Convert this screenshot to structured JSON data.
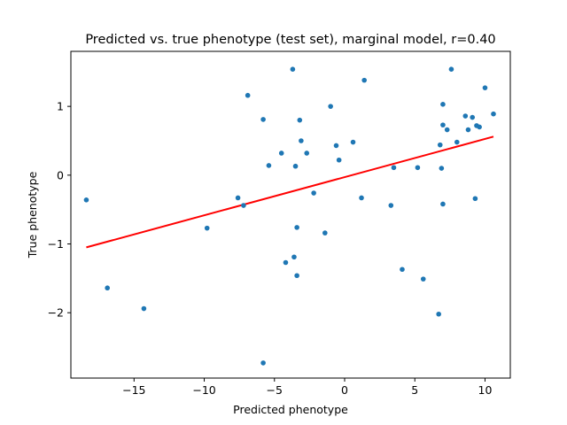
{
  "chart_data": {
    "type": "scatter",
    "title": "Predicted vs. true phenotype (test set), marginal model, r=0.40",
    "xlabel": "Predicted phenotype",
    "ylabel": "True phenotype",
    "xlim": [
      -19.5,
      11.8
    ],
    "ylim": [
      -2.95,
      1.8
    ],
    "xticks": [
      -15,
      -10,
      -5,
      0,
      5,
      10
    ],
    "yticks": [
      -2,
      -1,
      0,
      1
    ],
    "xtick_labels": [
      "−15",
      "−10",
      "−5",
      "0",
      "5",
      "10"
    ],
    "ytick_labels": [
      "−2",
      "−1",
      "0",
      "1"
    ],
    "grid": false,
    "point_color": "#1f77b4",
    "line_color": "#ff0000",
    "points": [
      {
        "x": -18.4,
        "y": -0.36
      },
      {
        "x": -16.9,
        "y": -1.64
      },
      {
        "x": -14.3,
        "y": -1.94
      },
      {
        "x": -9.8,
        "y": -0.77
      },
      {
        "x": -7.6,
        "y": -0.33
      },
      {
        "x": -7.2,
        "y": -0.44
      },
      {
        "x": -6.9,
        "y": 1.16
      },
      {
        "x": -5.8,
        "y": 0.81
      },
      {
        "x": -5.8,
        "y": -2.73
      },
      {
        "x": -5.4,
        "y": 0.14
      },
      {
        "x": -4.5,
        "y": 0.32
      },
      {
        "x": -4.2,
        "y": -1.27
      },
      {
        "x": -3.7,
        "y": 1.54
      },
      {
        "x": -3.6,
        "y": -1.19
      },
      {
        "x": -3.5,
        "y": 0.13
      },
      {
        "x": -3.4,
        "y": -0.76
      },
      {
        "x": -3.4,
        "y": -1.46
      },
      {
        "x": -3.2,
        "y": 0.8
      },
      {
        "x": -3.1,
        "y": 0.5
      },
      {
        "x": -2.7,
        "y": 0.32
      },
      {
        "x": -2.2,
        "y": -0.26
      },
      {
        "x": -1.4,
        "y": -0.84
      },
      {
        "x": -1.0,
        "y": 1.0
      },
      {
        "x": -0.6,
        "y": 0.43
      },
      {
        "x": -0.4,
        "y": 0.22
      },
      {
        "x": 0.6,
        "y": 0.48
      },
      {
        "x": 1.2,
        "y": -0.33
      },
      {
        "x": 1.4,
        "y": 1.38
      },
      {
        "x": 3.3,
        "y": -0.44
      },
      {
        "x": 3.5,
        "y": 0.11
      },
      {
        "x": 4.1,
        "y": -1.37
      },
      {
        "x": 5.2,
        "y": 0.11
      },
      {
        "x": 5.6,
        "y": -1.51
      },
      {
        "x": 6.7,
        "y": -2.02
      },
      {
        "x": 6.8,
        "y": 0.44
      },
      {
        "x": 6.9,
        "y": 0.1
      },
      {
        "x": 7.0,
        "y": 1.03
      },
      {
        "x": 7.0,
        "y": 0.73
      },
      {
        "x": 7.0,
        "y": -0.42
      },
      {
        "x": 7.3,
        "y": 0.66
      },
      {
        "x": 7.6,
        "y": 1.54
      },
      {
        "x": 8.0,
        "y": 0.48
      },
      {
        "x": 8.6,
        "y": 0.86
      },
      {
        "x": 8.8,
        "y": 0.66
      },
      {
        "x": 9.1,
        "y": 0.84
      },
      {
        "x": 9.3,
        "y": -0.34
      },
      {
        "x": 9.4,
        "y": 0.72
      },
      {
        "x": 9.6,
        "y": 0.7
      },
      {
        "x": 10.0,
        "y": 1.27
      },
      {
        "x": 10.6,
        "y": 0.89
      }
    ],
    "fit_line": {
      "x": [
        -18.4,
        10.6
      ],
      "y": [
        -1.05,
        0.56
      ]
    }
  }
}
